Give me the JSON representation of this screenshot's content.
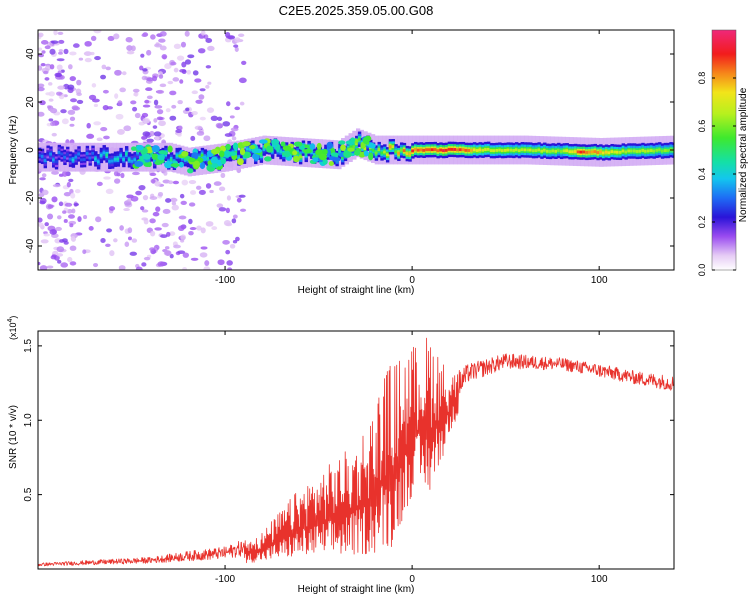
{
  "title": "C2E5.2025.359.05.00.G08",
  "chart_data": [
    {
      "type": "heatmap",
      "xlabel": "Height of straight line (km)",
      "ylabel": "Frequency (Hz)",
      "xlim": [
        -200,
        140
      ],
      "ylim": [
        -50,
        50
      ],
      "xticks": [
        -100,
        0,
        100
      ],
      "yticks": [
        -40,
        -20,
        0,
        20,
        40
      ],
      "colorbar": {
        "label": "Normalized spectral amplitude",
        "range": [
          0,
          1
        ],
        "ticks": [
          0.0,
          0.2,
          0.4,
          0.6,
          0.8
        ]
      },
      "ridge_center_hz": [
        {
          "x": -200,
          "y": -3
        },
        {
          "x": -160,
          "y": -3
        },
        {
          "x": -130,
          "y": -3
        },
        {
          "x": -120,
          "y": -5
        },
        {
          "x": -100,
          "y": -3
        },
        {
          "x": -80,
          "y": 0
        },
        {
          "x": -60,
          "y": -1
        },
        {
          "x": -40,
          "y": -2
        },
        {
          "x": -30,
          "y": 3
        },
        {
          "x": -20,
          "y": 0
        },
        {
          "x": 0,
          "y": 0
        },
        {
          "x": 20,
          "y": 0
        },
        {
          "x": 60,
          "y": 0
        },
        {
          "x": 100,
          "y": -1
        },
        {
          "x": 140,
          "y": 0
        }
      ],
      "peak_amplitude": [
        {
          "x": -200,
          "a": 0.3
        },
        {
          "x": -160,
          "a": 0.45
        },
        {
          "x": -120,
          "a": 0.5
        },
        {
          "x": -80,
          "a": 0.55
        },
        {
          "x": -40,
          "a": 0.6
        },
        {
          "x": -20,
          "a": 0.75
        },
        {
          "x": 0,
          "a": 0.85
        },
        {
          "x": 20,
          "a": 0.95
        },
        {
          "x": 40,
          "a": 0.7
        },
        {
          "x": 80,
          "a": 0.65
        },
        {
          "x": 90,
          "a": 0.9
        },
        {
          "x": 110,
          "a": 0.7
        },
        {
          "x": 140,
          "a": 0.6
        }
      ]
    },
    {
      "type": "line",
      "xlabel": "Height of straight line (km)",
      "ylabel": "SNR (10 * v/v)",
      "yscale_label": "(x10",
      "yscale_exp": "4",
      "yscale_close": ")",
      "xlim": [
        -200,
        140
      ],
      "ylim": [
        0,
        1.6
      ],
      "xticks": [
        -100,
        0,
        100
      ],
      "yticks": [
        0.5,
        1.0,
        1.5
      ],
      "series": [
        {
          "name": "SNR",
          "color": "#e8322c",
          "envelope_min": [
            {
              "x": -200,
              "y": 0.01
            },
            {
              "x": -140,
              "y": 0.02
            },
            {
              "x": -100,
              "y": 0.03
            },
            {
              "x": -80,
              "y": 0.05
            },
            {
              "x": -60,
              "y": 0.08
            },
            {
              "x": -40,
              "y": 0.08
            },
            {
              "x": -20,
              "y": 0.1
            },
            {
              "x": -10,
              "y": 0.15
            },
            {
              "x": 0,
              "y": 0.5
            },
            {
              "x": 10,
              "y": 0.5
            },
            {
              "x": 20,
              "y": 0.9
            },
            {
              "x": 30,
              "y": 1.2
            },
            {
              "x": 50,
              "y": 1.3
            },
            {
              "x": 80,
              "y": 1.3
            },
            {
              "x": 120,
              "y": 1.2
            },
            {
              "x": 140,
              "y": 1.15
            }
          ],
          "envelope_max": [
            {
              "x": -200,
              "y": 0.04
            },
            {
              "x": -140,
              "y": 0.08
            },
            {
              "x": -120,
              "y": 0.12
            },
            {
              "x": -100,
              "y": 0.15
            },
            {
              "x": -80,
              "y": 0.25
            },
            {
              "x": -60,
              "y": 0.55
            },
            {
              "x": -40,
              "y": 0.75
            },
            {
              "x": -30,
              "y": 0.85
            },
            {
              "x": -20,
              "y": 1.1
            },
            {
              "x": -15,
              "y": 1.35
            },
            {
              "x": 0,
              "y": 1.5
            },
            {
              "x": 10,
              "y": 1.6
            },
            {
              "x": 20,
              "y": 1.3
            },
            {
              "x": 30,
              "y": 1.38
            },
            {
              "x": 50,
              "y": 1.45
            },
            {
              "x": 80,
              "y": 1.42
            },
            {
              "x": 100,
              "y": 1.38
            },
            {
              "x": 120,
              "y": 1.33
            },
            {
              "x": 140,
              "y": 1.3
            }
          ]
        }
      ]
    }
  ]
}
